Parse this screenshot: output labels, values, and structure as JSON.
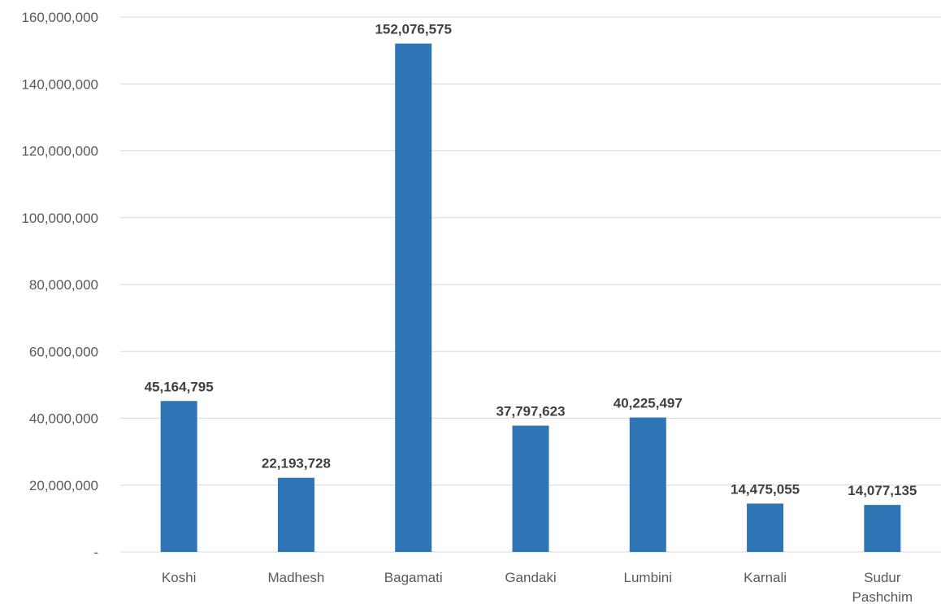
{
  "chart_data": {
    "type": "bar",
    "categories": [
      "Koshi",
      "Madhesh",
      "Bagamati",
      "Gandaki",
      "Lumbini",
      "Karnali",
      "Sudur Pashchim"
    ],
    "category_lines": [
      [
        "Koshi"
      ],
      [
        "Madhesh"
      ],
      [
        "Bagamati"
      ],
      [
        "Gandaki"
      ],
      [
        "Lumbini"
      ],
      [
        "Karnali"
      ],
      [
        "Sudur",
        "Pashchim"
      ]
    ],
    "values": [
      45164795,
      22193728,
      152076575,
      37797623,
      40225497,
      14475055,
      14077135
    ],
    "data_labels": [
      "45,164,795",
      "22,193,728",
      "152,076,575",
      "37,797,623",
      "40,225,497",
      "14,475,055",
      "14,077,135"
    ],
    "ylim": [
      0,
      160000000
    ],
    "yticks": [
      0,
      20000000,
      40000000,
      60000000,
      80000000,
      100000000,
      120000000,
      140000000,
      160000000
    ],
    "ytick_labels": [
      "-",
      "20,000,000",
      "40,000,000",
      "60,000,000",
      "80,000,000",
      "100,000,000",
      "120,000,000",
      "140,000,000",
      "160,000,000"
    ],
    "title": "",
    "xlabel": "",
    "ylabel": "",
    "grid": true,
    "legend": "none",
    "bar_color": "#2e75b6"
  }
}
